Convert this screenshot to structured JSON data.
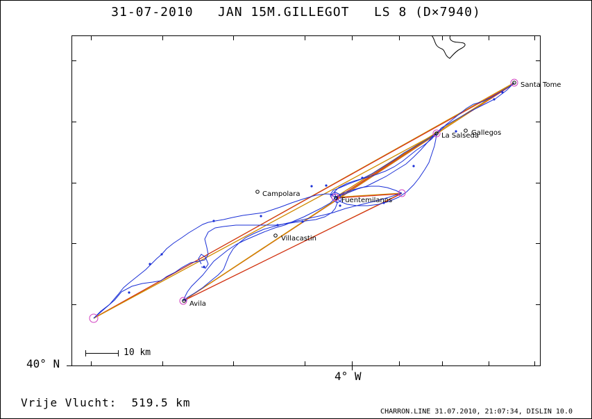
{
  "title": "31-07-2010   JAN 15M.GILLEGOT   LS 8 (D×7940)",
  "distance_text": "Vrije Vlucht:  519.5 km",
  "footer": "CHARRON.LINE 31.07.2010, 21:07:34, DISLIN 10.0",
  "axis": {
    "lat_label": "40° N",
    "lon_label": "4° W"
  },
  "scale_bar": {
    "label": "10 km"
  },
  "places": {
    "santa_tome": "Santa Tome",
    "la_salseda": "La Salseda",
    "gallegos": "Gallegos",
    "campolara": "Campolara",
    "fuentemilanos": "Fuentemilanos",
    "villacastin": "Villacastin",
    "avila": "Avila"
  },
  "colors": {
    "track": "#1a2fd6",
    "task_line": "#d08a00",
    "task_line_inner": "#d42020",
    "turnpoint": "#d040c0",
    "frame": "#000000"
  }
}
